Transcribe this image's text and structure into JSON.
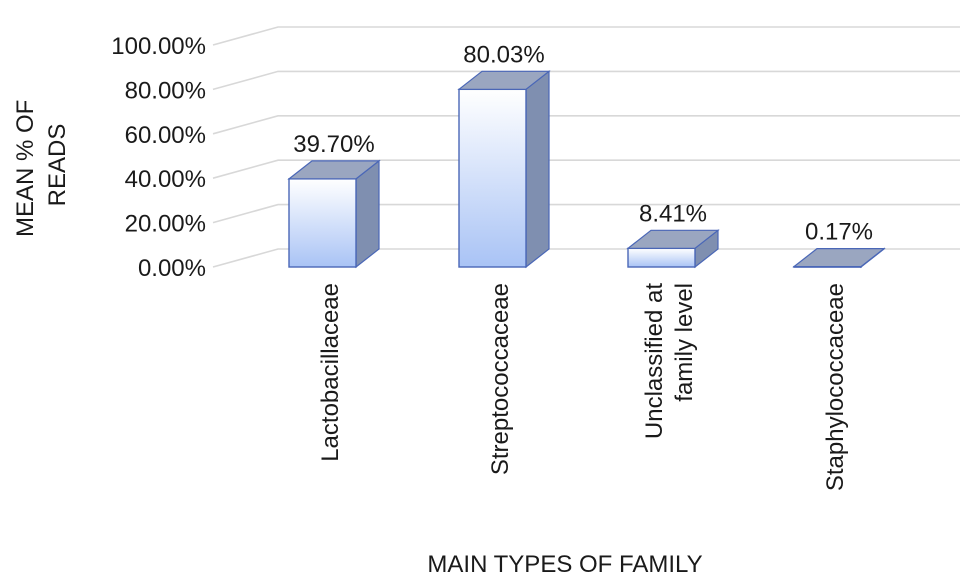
{
  "chart_data": {
    "type": "bar",
    "style": "3d-column",
    "title": "",
    "xlabel": "MAIN TYPES OF FAMILY",
    "ylabel_lines": [
      "MEAN % OF",
      "READS"
    ],
    "categories": [
      [
        "Lactobacillaceae"
      ],
      [
        "Streptococcaceae"
      ],
      [
        "Unclassified at",
        "family level"
      ],
      [
        "Staphylococcaceae"
      ]
    ],
    "values": [
      39.7,
      80.03,
      8.41,
      0.17
    ],
    "data_labels": [
      "39.70%",
      "80.03%",
      "8.41%",
      "0.17%"
    ],
    "ylim": [
      0,
      100
    ],
    "yticks": [
      "0.00%",
      "20.00%",
      "40.00%",
      "60.00%",
      "80.00%",
      "100.00%"
    ],
    "grid": true,
    "legend": "none",
    "colors": {
      "bar_top_light": "#ffffff",
      "bar_front_dark": "#a9c3f5",
      "bar_side": "#7f8fb0",
      "bar_cap": "#9aa6c0",
      "bar_outline": "#4a67b7",
      "grid": "#d8d8d8"
    }
  }
}
